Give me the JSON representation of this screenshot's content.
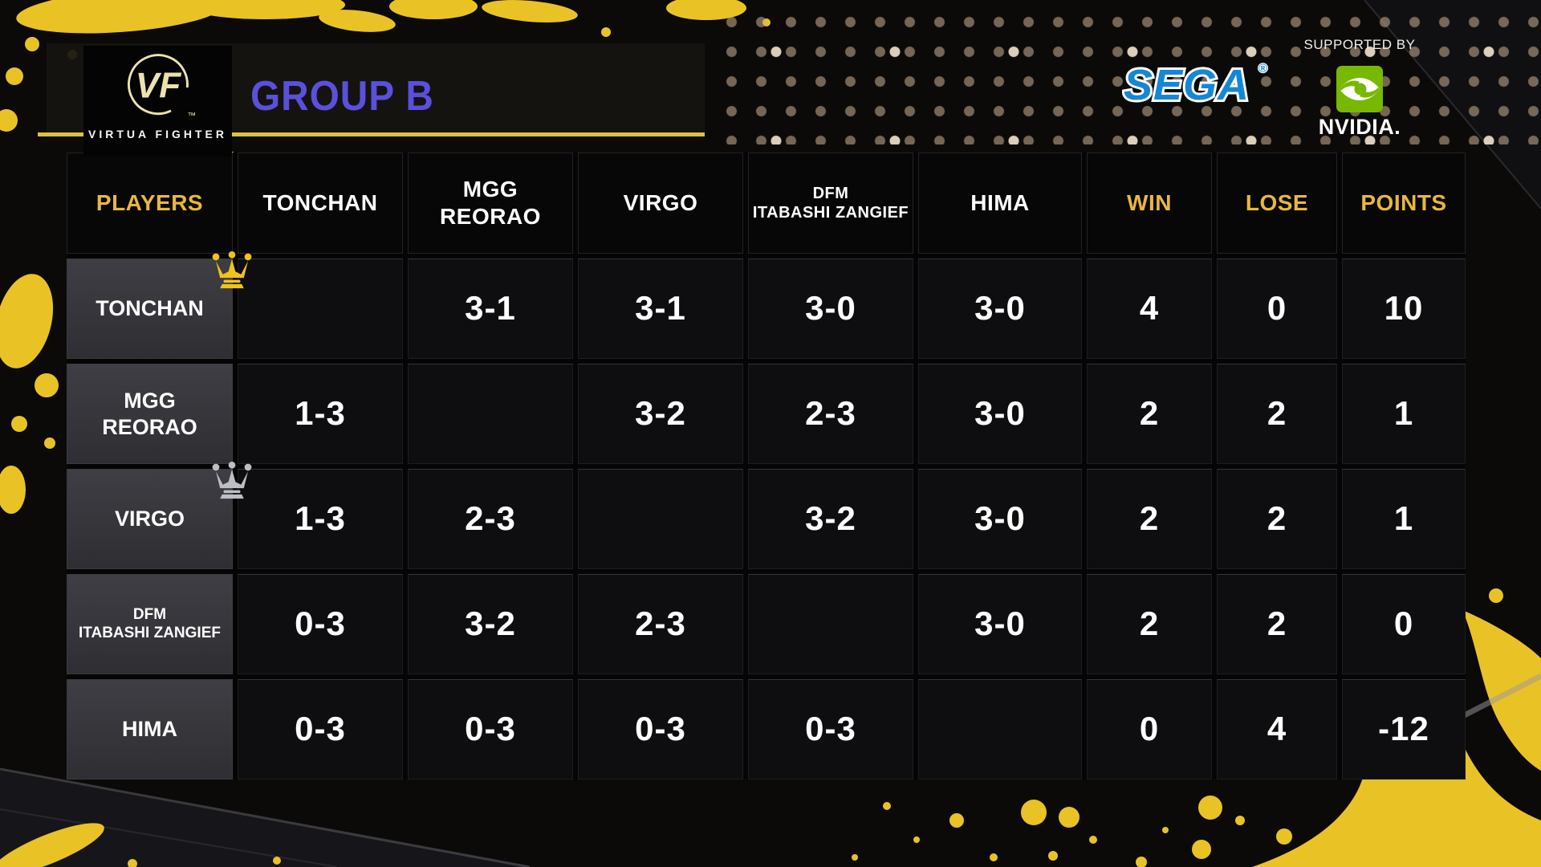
{
  "header": {
    "group_title": "GROUP B",
    "logo": {
      "monogram": "VF",
      "wordmark": "VIRTUA FIGHTER",
      "trademark": "™"
    },
    "sponsors": {
      "supported_by": "SUPPORTED BY",
      "sega_wordmark": "SEGA",
      "sega_registered": "®",
      "nvidia_wordmark": "NVIDIA."
    }
  },
  "table": {
    "columns": [
      {
        "label": "PLAYERS",
        "accent": true
      },
      {
        "label": "TONCHAN"
      },
      {
        "label": "MGG\nREORAO"
      },
      {
        "label": "VIRGO"
      },
      {
        "label": "DFM\nITABASHI ZANGIEF",
        "small": true
      },
      {
        "label": "HIMA"
      },
      {
        "label": "WIN",
        "accent": true
      },
      {
        "label": "LOSE",
        "accent": true
      },
      {
        "label": "POINTS",
        "accent": true
      }
    ],
    "rows": [
      {
        "player": "TONCHAN",
        "crown": "gold",
        "results": [
          "",
          "3-1",
          "3-1",
          "3-0",
          "3-0"
        ],
        "win": "4",
        "lose": "0",
        "points": "10"
      },
      {
        "player": "MGG\nREORAO",
        "results": [
          "1-3",
          "",
          "3-2",
          "2-3",
          "3-0"
        ],
        "win": "2",
        "lose": "2",
        "points": "1"
      },
      {
        "player": "VIRGO",
        "crown": "silver",
        "results": [
          "1-3",
          "2-3",
          "",
          "3-2",
          "3-0"
        ],
        "win": "2",
        "lose": "2",
        "points": "1"
      },
      {
        "player": "DFM\nITABASHI ZANGIEF",
        "small": true,
        "results": [
          "0-3",
          "3-2",
          "2-3",
          "",
          "3-0"
        ],
        "win": "2",
        "lose": "2",
        "points": "0"
      },
      {
        "player": "HIMA",
        "results": [
          "0-3",
          "0-3",
          "0-3",
          "0-3",
          ""
        ],
        "win": "0",
        "lose": "4",
        "points": "-12"
      }
    ]
  },
  "colors": {
    "accent_gold": "#e9b73e",
    "underline_gold": "#ddc13f",
    "title_purple": "#5a50dc",
    "sega_blue": "#1487d6",
    "nvidia_green": "#77b900",
    "crown_gold": "#f2c21c",
    "crown_silver": "#bcbfc5",
    "splatter_gold": "#e9c226"
  }
}
